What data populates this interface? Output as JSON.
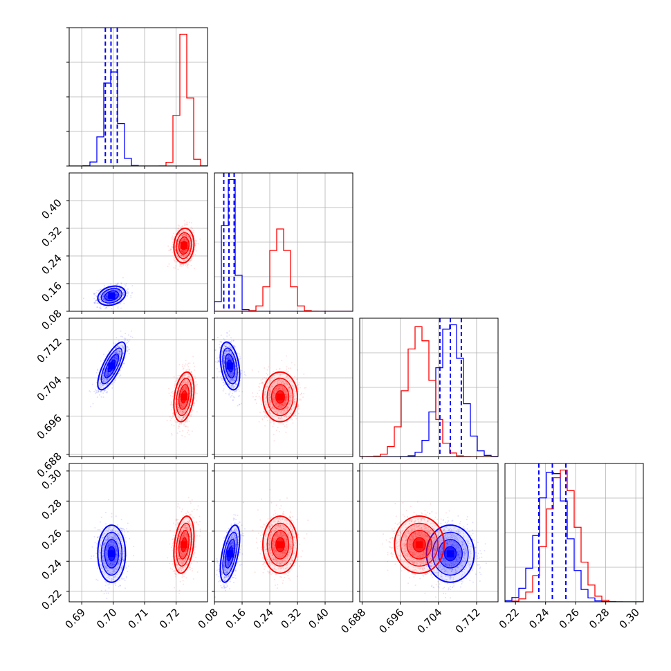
{
  "chart_data": {
    "type": "corner",
    "title": "",
    "grid": true,
    "series": [
      {
        "color": "#0000ff",
        "quantile_lines": true,
        "params": [
          {
            "mean": 0.6995,
            "sd": 0.0022,
            "quantiles": [
              0.6975,
              0.6993,
              0.7013
            ]
          },
          {
            "mean": 0.125,
            "sd": 0.014,
            "quantiles": [
              0.107,
              0.122,
              0.137
            ]
          },
          {
            "mean": 0.7065,
            "sd": 0.0025,
            "quantiles": [
              0.7043,
              0.7065,
              0.7088
            ]
          },
          {
            "mean": 0.245,
            "sd": 0.0095,
            "quantiles": [
              0.2355,
              0.2445,
              0.2535
            ]
          }
        ],
        "correlations": {
          "1-0": 0.25,
          "2-0": 0.75,
          "2-1": -0.35,
          "3-0": 0.0,
          "3-1": 0.55,
          "3-2": 0.0
        }
      },
      {
        "color": "#ff0000",
        "quantile_lines": false,
        "params": [
          {
            "mean": 0.7225,
            "sd": 0.0016
          },
          {
            "mean": 0.27,
            "sd": 0.025
          },
          {
            "mean": 0.7,
            "sd": 0.0026
          },
          {
            "mean": 0.251,
            "sd": 0.0095
          }
        ],
        "correlations": {
          "1-0": 0.1,
          "2-0": 0.3,
          "2-1": 0.0,
          "3-0": 0.3,
          "3-1": 0.0,
          "3-2": 0.0
        }
      }
    ],
    "axes": [
      {
        "range": [
          0.686,
          0.73
        ],
        "ticks": [
          0.69,
          0.7,
          0.71,
          0.72
        ],
        "tick_labels": [
          "0.69",
          "0.70",
          "0.71",
          "0.72"
        ]
      },
      {
        "range": [
          0.08,
          0.48
        ],
        "ticks": [
          0.08,
          0.16,
          0.24,
          0.32,
          0.4
        ],
        "tick_labels": [
          "0.08",
          "0.16",
          "0.24",
          "0.32",
          "0.40"
        ]
      },
      {
        "range": [
          0.6875,
          0.7165
        ],
        "ticks": [
          0.688,
          0.696,
          0.704,
          0.712
        ],
        "tick_labels": [
          "0.688",
          "0.696",
          "0.704",
          "0.712"
        ]
      },
      {
        "range": [
          0.213,
          0.305
        ],
        "ticks": [
          0.22,
          0.24,
          0.26,
          0.28,
          0.3
        ],
        "tick_labels": [
          "0.22",
          "0.24",
          "0.26",
          "0.28",
          "0.30"
        ]
      }
    ]
  }
}
